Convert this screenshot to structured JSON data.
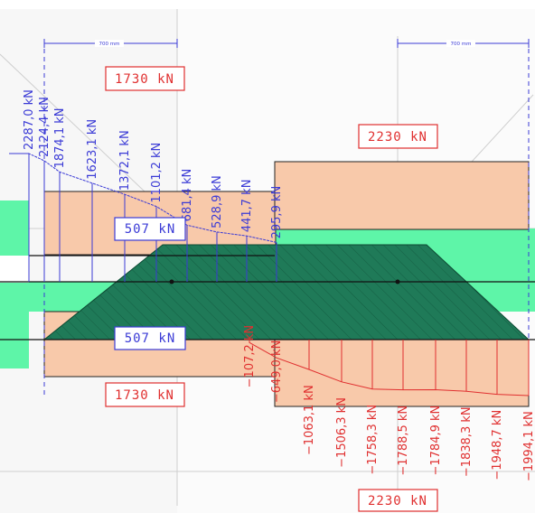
{
  "colors": {
    "blue": "#3b3bd6",
    "red": "#e03030",
    "salmon": "#f8c9aa",
    "mint": "#5ef5a8",
    "dark_green": "#1f7a58"
  },
  "dimensions": {
    "left": "700 mm",
    "right": "700 mm"
  },
  "boxes": {
    "top_left": "1730 kN",
    "top_right": "2230 kN",
    "mid_upper": "507 kN",
    "mid_lower": "507 kN",
    "bottom_left": "1730 kN",
    "bottom_right": "2230 kN"
  },
  "chart_data": {
    "type": "force-diagram",
    "unit": "kN",
    "positive_series": {
      "name": "",
      "labels": [
        "2287,0 kN",
        "2124,4 kN",
        "1874,1 kN",
        "1623,1 kN",
        "1372,1 kN",
        "1101,2 kN",
        "681,4 kN",
        "528,9 kN",
        "441,7 kN",
        "295,9 kN"
      ],
      "values": [
        2287.0,
        2124.4,
        1874.1,
        1623.1,
        1372.1,
        1101.2,
        681.4,
        528.9,
        441.7,
        295.9
      ]
    },
    "negative_series": {
      "name": "",
      "labels": [
        "−107,2 kN",
        "−649,0 kN",
        "−1063,1 kN",
        "−1506,3 kN",
        "−1758,3 kN",
        "−1788,5 kN",
        "−1784,9 kN",
        "−1838,3 kN",
        "−1948,7 kN",
        "−1994,1 kN"
      ],
      "values": [
        -107.2,
        -649.0,
        -1063.1,
        -1506.3,
        -1758.3,
        -1788.5,
        -1784.9,
        -1838.3,
        -1948.7,
        -1994.1
      ]
    }
  }
}
